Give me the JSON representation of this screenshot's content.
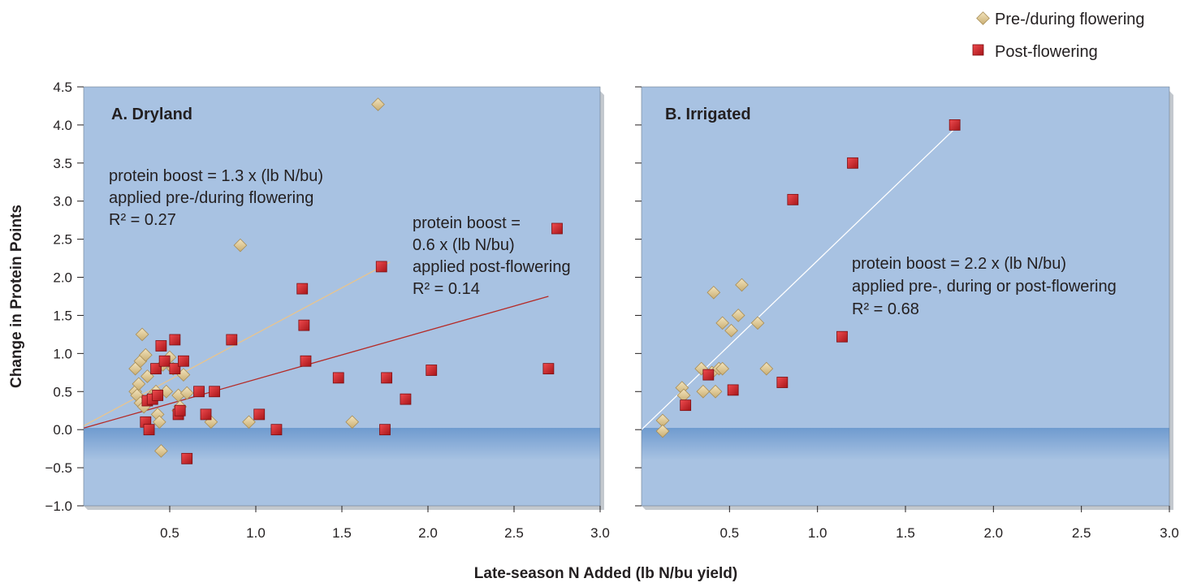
{
  "figure": {
    "ylabel": "Change in Protein Points",
    "xlabel": "Late-season N Added (lb N/bu yield)",
    "legend": {
      "placement": "top-right",
      "items": [
        {
          "label": "Pre-/during flowering",
          "marker": "diamond",
          "color": "#e6cf9a"
        },
        {
          "label": "Post-flowering",
          "marker": "square",
          "color": "#d9262b"
        }
      ]
    },
    "colors": {
      "plot_background": "#a8c2e2",
      "below_zero_band": "#7aa3d3",
      "pre_fit_line": "#e8c48e",
      "post_fit_line": "#b52a26",
      "combined_fit_line": "#ffffff"
    }
  },
  "chart_data": [
    {
      "type": "scatter",
      "title": "A. Dryland",
      "xlim": [
        0,
        3.0
      ],
      "ylim": [
        -1.0,
        4.5
      ],
      "xticks": [
        "0.5",
        "1.0",
        "1.5",
        "2.0",
        "2.5",
        "3.0"
      ],
      "yticks": [
        "−1.0",
        "−0.5",
        "0.0",
        "0.5",
        "1.0",
        "1.5",
        "2.0",
        "2.5",
        "3.0",
        "3.5",
        "4.0",
        "4.5"
      ],
      "grid": false,
      "annotations": [
        {
          "id": "pre",
          "lines": [
            "protein boost = 1.3 x (lb N/bu)",
            "applied pre-/during flowering",
            "R² = 0.27"
          ]
        },
        {
          "id": "post",
          "lines": [
            "protein boost =",
            "0.6 x (lb N/bu)",
            "applied post-flowering",
            "R² = 0.14"
          ]
        }
      ],
      "fits": [
        {
          "series": "Pre-/during flowering",
          "x": [
            0.0,
            1.78
          ],
          "y": [
            0.05,
            2.2
          ]
        },
        {
          "series": "Post-flowering",
          "x": [
            0.0,
            2.7
          ],
          "y": [
            0.02,
            1.75
          ]
        }
      ],
      "series": [
        {
          "name": "Pre-/during flowering",
          "marker": "diamond",
          "points": [
            [
              0.3,
              0.8
            ],
            [
              0.3,
              0.5
            ],
            [
              0.31,
              0.45
            ],
            [
              0.32,
              0.6
            ],
            [
              0.33,
              0.9
            ],
            [
              0.33,
              0.35
            ],
            [
              0.34,
              1.25
            ],
            [
              0.35,
              0.3
            ],
            [
              0.36,
              0.98
            ],
            [
              0.37,
              0.7
            ],
            [
              0.38,
              0.4
            ],
            [
              0.4,
              0.45
            ],
            [
              0.42,
              0.5
            ],
            [
              0.43,
              0.2
            ],
            [
              0.44,
              0.1
            ],
            [
              0.45,
              -0.28
            ],
            [
              0.46,
              0.85
            ],
            [
              0.48,
              0.5
            ],
            [
              0.5,
              0.95
            ],
            [
              0.52,
              0.8
            ],
            [
              0.55,
              0.45
            ],
            [
              0.55,
              0.25
            ],
            [
              0.56,
              0.3
            ],
            [
              0.58,
              0.72
            ],
            [
              0.6,
              0.48
            ],
            [
              0.74,
              0.1
            ],
            [
              0.91,
              2.42
            ],
            [
              0.96,
              0.1
            ],
            [
              1.56,
              0.1
            ],
            [
              1.71,
              4.27
            ]
          ]
        },
        {
          "name": "Post-flowering",
          "marker": "square",
          "points": [
            [
              0.36,
              0.1
            ],
            [
              0.37,
              0.38
            ],
            [
              0.38,
              0.0
            ],
            [
              0.4,
              0.4
            ],
            [
              0.42,
              0.8
            ],
            [
              0.43,
              0.45
            ],
            [
              0.45,
              1.1
            ],
            [
              0.47,
              0.9
            ],
            [
              0.53,
              1.18
            ],
            [
              0.53,
              0.8
            ],
            [
              0.55,
              0.2
            ],
            [
              0.56,
              0.25
            ],
            [
              0.58,
              0.9
            ],
            [
              0.6,
              -0.38
            ],
            [
              0.67,
              0.5
            ],
            [
              0.71,
              0.2
            ],
            [
              0.76,
              0.5
            ],
            [
              0.86,
              1.18
            ],
            [
              1.02,
              0.2
            ],
            [
              1.12,
              0.0
            ],
            [
              1.27,
              1.85
            ],
            [
              1.28,
              1.37
            ],
            [
              1.29,
              0.9
            ],
            [
              1.48,
              0.68
            ],
            [
              1.73,
              2.14
            ],
            [
              1.75,
              0.0
            ],
            [
              1.76,
              0.68
            ],
            [
              1.87,
              0.4
            ],
            [
              2.02,
              0.78
            ],
            [
              2.7,
              0.8
            ],
            [
              2.75,
              2.64
            ]
          ]
        }
      ]
    },
    {
      "type": "scatter",
      "title": "B. Irrigated",
      "xlim": [
        0,
        3.0
      ],
      "ylim": [
        -1.0,
        4.5
      ],
      "xticks": [
        "0.5",
        "1.0",
        "1.5",
        "2.0",
        "2.5",
        "3.0"
      ],
      "grid": false,
      "annotations": [
        {
          "id": "combined",
          "lines": [
            "protein boost = 2.2 x (lb N/bu)",
            "applied pre-, during or post-flowering",
            "R² = 0.68"
          ]
        }
      ],
      "fits": [
        {
          "series": "All timings",
          "x": [
            0.0,
            1.78
          ],
          "y": [
            0.0,
            3.95
          ]
        }
      ],
      "series": [
        {
          "name": "Pre-/during flowering",
          "marker": "diamond",
          "points": [
            [
              0.12,
              0.12
            ],
            [
              0.12,
              -0.02
            ],
            [
              0.23,
              0.55
            ],
            [
              0.24,
              0.45
            ],
            [
              0.34,
              0.8
            ],
            [
              0.35,
              0.5
            ],
            [
              0.4,
              0.75
            ],
            [
              0.41,
              1.8
            ],
            [
              0.42,
              0.5
            ],
            [
              0.44,
              0.8
            ],
            [
              0.46,
              1.4
            ],
            [
              0.46,
              0.8
            ],
            [
              0.51,
              1.3
            ],
            [
              0.55,
              1.5
            ],
            [
              0.57,
              1.9
            ],
            [
              0.66,
              1.4
            ],
            [
              0.71,
              0.8
            ]
          ]
        },
        {
          "name": "Post-flowering",
          "marker": "square",
          "points": [
            [
              0.25,
              0.32
            ],
            [
              0.38,
              0.72
            ],
            [
              0.52,
              0.52
            ],
            [
              0.8,
              0.62
            ],
            [
              0.86,
              3.02
            ],
            [
              1.14,
              1.22
            ],
            [
              1.2,
              3.5
            ],
            [
              1.78,
              4.0
            ]
          ]
        }
      ]
    }
  ]
}
